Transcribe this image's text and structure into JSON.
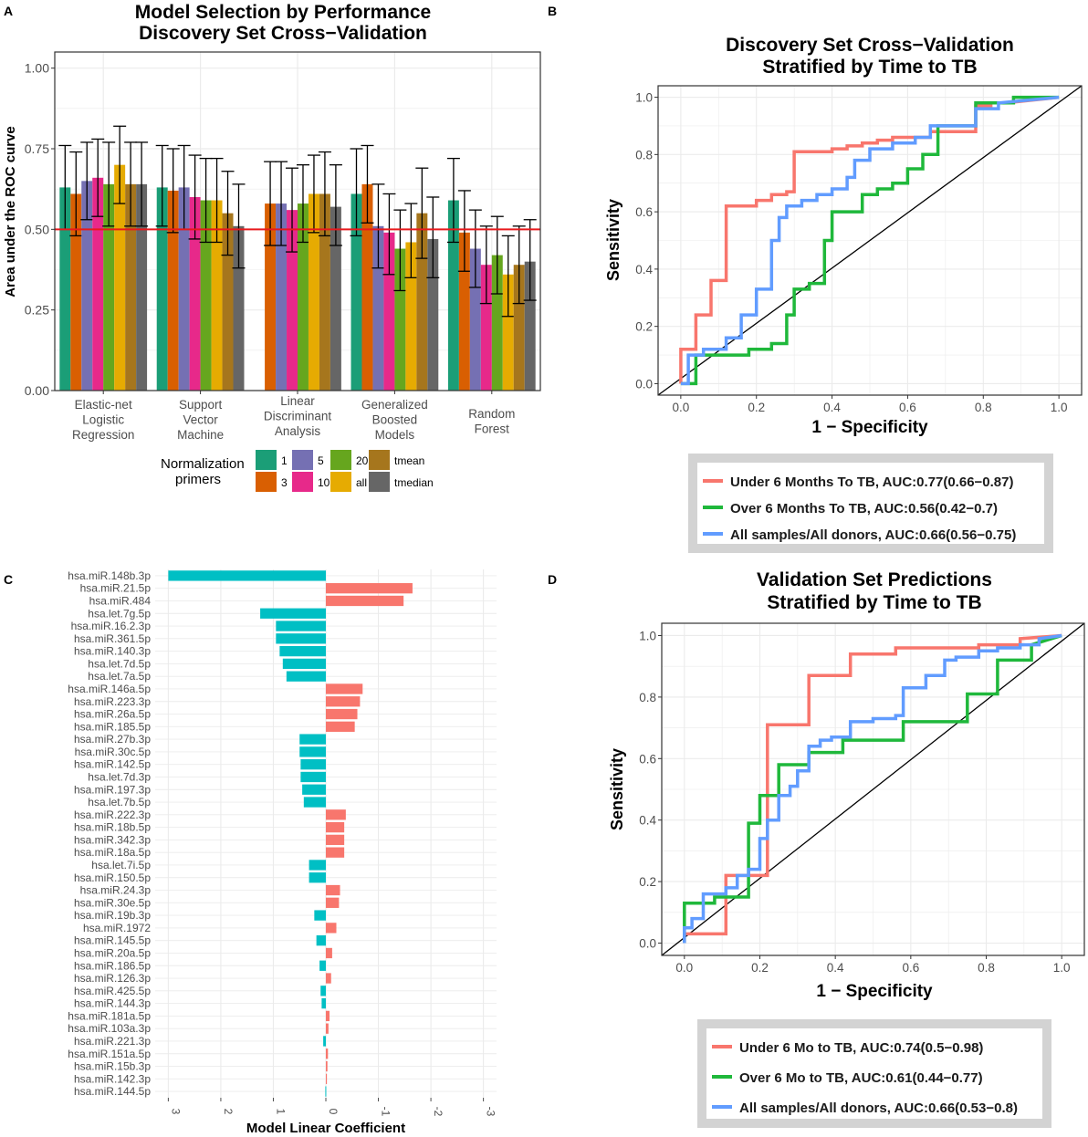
{
  "panel_letters": [
    "A",
    "B",
    "C",
    "D"
  ],
  "colors": {
    "grid": "#ebebeb",
    "border": "#333333",
    "refline": "#e8191c",
    "pos": "#f8766d",
    "neg": "#00bfc4",
    "under": "#f8766d",
    "over": "#1fb83b",
    "all": "#619cff",
    "legend_bg": "#d3d3d3"
  },
  "chart_data": [
    {
      "type": "bar",
      "panel": "A",
      "title": "Model Selection by Performance",
      "subtitle": "Discovery Set Cross−Validation",
      "xlabel": "",
      "ylabel": "Area under the ROC curve",
      "ylim": [
        0,
        1.05
      ],
      "yticks": [
        "0.00",
        "0.25",
        "0.50",
        "0.75",
        "1.00"
      ],
      "reference_line": 0.5,
      "categories": [
        "Elastic-net Logistic Regression",
        "Support Vector Machine",
        "Linear Discriminant Analysis",
        "Generalized Boosted Models",
        "Random Forest"
      ],
      "category_lines": [
        [
          "Elastic-net",
          "Logistic",
          "Regression"
        ],
        [
          "Support",
          "Vector",
          "Machine"
        ],
        [
          "Linear",
          "Discriminant",
          "Analysis"
        ],
        [
          "Generalized",
          "Boosted",
          "Models"
        ],
        [
          "Random",
          "Forest"
        ]
      ],
      "legend_title": [
        "Normalization",
        "primers"
      ],
      "series": [
        {
          "name": "1",
          "color": "#1b9e77",
          "values": [
            0.63,
            0.63,
            null,
            0.61,
            0.59
          ],
          "err_low": [
            0.5,
            0.51,
            null,
            0.48,
            0.46
          ],
          "err_high": [
            0.76,
            0.76,
            null,
            0.75,
            0.72
          ]
        },
        {
          "name": "3",
          "color": "#d95f02",
          "values": [
            0.61,
            0.62,
            0.58,
            0.64,
            0.49
          ],
          "err_low": [
            0.48,
            0.49,
            0.45,
            0.52,
            0.37
          ],
          "err_high": [
            0.74,
            0.75,
            0.71,
            0.76,
            0.62
          ]
        },
        {
          "name": "5",
          "color": "#7570b3",
          "values": [
            0.65,
            0.63,
            0.58,
            0.51,
            0.44
          ],
          "err_low": [
            0.53,
            0.5,
            0.45,
            0.38,
            0.32
          ],
          "err_high": [
            0.77,
            0.76,
            0.71,
            0.64,
            0.56
          ]
        },
        {
          "name": "10",
          "color": "#e7298a",
          "values": [
            0.66,
            0.6,
            0.56,
            0.49,
            0.39
          ],
          "err_low": [
            0.54,
            0.47,
            0.43,
            0.36,
            0.27
          ],
          "err_high": [
            0.78,
            0.73,
            0.69,
            0.61,
            0.51
          ]
        },
        {
          "name": "20",
          "color": "#66a61e",
          "values": [
            0.64,
            0.59,
            0.58,
            0.44,
            0.42
          ],
          "err_low": [
            0.51,
            0.46,
            0.46,
            0.31,
            0.3
          ],
          "err_high": [
            0.77,
            0.72,
            0.7,
            0.56,
            0.54
          ]
        },
        {
          "name": "all",
          "color": "#e6ab02",
          "values": [
            0.7,
            0.59,
            0.61,
            0.46,
            0.36
          ],
          "err_low": [
            0.58,
            0.46,
            0.49,
            0.35,
            0.23
          ],
          "err_high": [
            0.82,
            0.72,
            0.73,
            0.58,
            0.48
          ]
        },
        {
          "name": "tmean",
          "color": "#a6761d",
          "values": [
            0.64,
            0.55,
            0.61,
            0.55,
            0.39
          ],
          "err_low": [
            0.51,
            0.42,
            0.48,
            0.41,
            0.27
          ],
          "err_high": [
            0.77,
            0.68,
            0.74,
            0.69,
            0.51
          ]
        },
        {
          "name": "tmedian",
          "color": "#666666",
          "values": [
            0.64,
            0.51,
            0.57,
            0.47,
            0.4
          ],
          "err_low": [
            0.51,
            0.38,
            0.45,
            0.35,
            0.28
          ],
          "err_high": [
            0.77,
            0.64,
            0.7,
            0.6,
            0.53
          ]
        }
      ]
    },
    {
      "type": "line",
      "panel": "B",
      "title": "Discovery Set Cross−Validation",
      "subtitle": "Stratified by Time to TB",
      "xlabel": "1 − Specificity",
      "ylabel": "Sensitivity",
      "xlim": [
        -0.06,
        1.06
      ],
      "ylim": [
        -0.04,
        1.04
      ],
      "ticks": [
        "0.0",
        "0.2",
        "0.4",
        "0.6",
        "0.8",
        "1.0"
      ],
      "diagonal": true,
      "series": [
        {
          "name": "Under 6 Months To TB, AUC:0.77(0.66−0.87)",
          "color": "#f8766d",
          "x": [
            0,
            0,
            0.04,
            0.04,
            0.08,
            0.08,
            0.12,
            0.12,
            0.2,
            0.2,
            0.24,
            0.24,
            0.28,
            0.28,
            0.3,
            0.3,
            0.4,
            0.4,
            0.44,
            0.44,
            0.48,
            0.48,
            0.52,
            0.52,
            0.56,
            0.56,
            0.66,
            0.66,
            0.78,
            0.78,
            0.82,
            0.82,
            0.86,
            0.86,
            1
          ],
          "y": [
            0,
            0.12,
            0.12,
            0.24,
            0.24,
            0.36,
            0.36,
            0.62,
            0.62,
            0.64,
            0.64,
            0.66,
            0.66,
            0.67,
            0.67,
            0.81,
            0.81,
            0.82,
            0.82,
            0.83,
            0.83,
            0.84,
            0.84,
            0.85,
            0.85,
            0.86,
            0.86,
            0.88,
            0.88,
            0.97,
            0.97,
            0.98,
            0.98,
            0.98,
            1
          ]
        },
        {
          "name": "Over 6 Months To TB, AUC:0.56(0.42−0.7)",
          "color": "#1fb83b",
          "x": [
            0,
            0.04,
            0.04,
            0.18,
            0.18,
            0.24,
            0.24,
            0.28,
            0.28,
            0.3,
            0.3,
            0.34,
            0.34,
            0.38,
            0.38,
            0.4,
            0.4,
            0.48,
            0.48,
            0.52,
            0.52,
            0.56,
            0.56,
            0.6,
            0.6,
            0.64,
            0.64,
            0.68,
            0.68,
            0.78,
            0.78,
            0.88,
            0.88,
            1
          ],
          "y": [
            0,
            0,
            0.1,
            0.1,
            0.12,
            0.12,
            0.14,
            0.14,
            0.24,
            0.24,
            0.33,
            0.33,
            0.35,
            0.35,
            0.5,
            0.5,
            0.6,
            0.6,
            0.66,
            0.66,
            0.68,
            0.68,
            0.7,
            0.7,
            0.75,
            0.75,
            0.8,
            0.8,
            0.9,
            0.9,
            0.98,
            0.98,
            1.0,
            1.0
          ]
        },
        {
          "name": "All samples/All donors, AUC:0.66(0.56−0.75)",
          "color": "#619cff",
          "x": [
            0,
            0.02,
            0.02,
            0.06,
            0.06,
            0.12,
            0.12,
            0.16,
            0.16,
            0.2,
            0.2,
            0.24,
            0.24,
            0.26,
            0.26,
            0.28,
            0.28,
            0.32,
            0.32,
            0.36,
            0.36,
            0.4,
            0.4,
            0.44,
            0.44,
            0.46,
            0.46,
            0.5,
            0.5,
            0.56,
            0.56,
            0.62,
            0.62,
            0.66,
            0.66,
            0.78,
            0.78,
            0.84,
            0.84,
            1
          ],
          "y": [
            0,
            0,
            0.1,
            0.1,
            0.12,
            0.12,
            0.16,
            0.16,
            0.24,
            0.24,
            0.33,
            0.33,
            0.5,
            0.5,
            0.58,
            0.58,
            0.62,
            0.62,
            0.64,
            0.64,
            0.66,
            0.66,
            0.68,
            0.68,
            0.72,
            0.72,
            0.78,
            0.78,
            0.82,
            0.82,
            0.84,
            0.84,
            0.86,
            0.86,
            0.9,
            0.9,
            0.96,
            0.96,
            0.98,
            1.0
          ]
        }
      ]
    },
    {
      "type": "bar",
      "panel": "C",
      "orientation": "horizontal",
      "xlabel": "Model Linear Coefficient",
      "xlim": [
        3.25,
        -3.25
      ],
      "xticks": [
        3,
        2,
        1,
        0,
        -1,
        -2,
        -3
      ],
      "categories": [
        "hsa.miR.148b.3p",
        "hsa.miR.21.5p",
        "hsa.miR.484",
        "hsa.let.7g.5p",
        "hsa.miR.16.2.3p",
        "hsa.miR.361.5p",
        "hsa.miR.140.3p",
        "hsa.let.7d.5p",
        "hsa.let.7a.5p",
        "hsa.miR.146a.5p",
        "hsa.miR.223.3p",
        "hsa.miR.26a.5p",
        "hsa.miR.185.5p",
        "hsa.miR.27b.3p",
        "hsa.miR.30c.5p",
        "hsa.miR.142.5p",
        "hsa.let.7d.3p",
        "hsa.miR.197.3p",
        "hsa.let.7b.5p",
        "hsa.miR.222.3p",
        "hsa.miR.18b.5p",
        "hsa.miR.342.3p",
        "hsa.miR.18a.5p",
        "hsa.let.7i.5p",
        "hsa.miR.150.5p",
        "hsa.miR.24.3p",
        "hsa.miR.30e.5p",
        "hsa.miR.19b.3p",
        "hsa.miR.1972",
        "hsa.miR.145.5p",
        "hsa.miR.20a.5p",
        "hsa.miR.186.5p",
        "hsa.miR.126.3p",
        "hsa.miR.425.5p",
        "hsa.miR.144.3p",
        "hsa.miR.181a.5p",
        "hsa.miR.103a.3p",
        "hsa.miR.221.3p",
        "hsa.miR.151a.5p",
        "hsa.miR.15b.3p",
        "hsa.miR.142.3p",
        "hsa.miR.144.5p"
      ],
      "values": [
        3.0,
        -1.65,
        -1.48,
        1.25,
        0.95,
        0.95,
        0.88,
        0.82,
        0.75,
        -0.7,
        -0.65,
        -0.6,
        -0.55,
        0.5,
        0.5,
        0.48,
        0.48,
        0.45,
        0.42,
        -0.38,
        -0.35,
        -0.35,
        -0.35,
        0.32,
        0.32,
        -0.27,
        -0.25,
        0.22,
        -0.2,
        0.18,
        -0.12,
        0.12,
        -0.1,
        0.1,
        0.08,
        -0.07,
        -0.05,
        0.05,
        -0.04,
        -0.03,
        -0.02,
        0.01
      ]
    },
    {
      "type": "line",
      "panel": "D",
      "title": "Validation Set Predictions",
      "subtitle": "Stratified by Time to TB",
      "xlabel": "1 − Specificity",
      "ylabel": "Sensitivity",
      "xlim": [
        -0.06,
        1.06
      ],
      "ylim": [
        -0.04,
        1.04
      ],
      "ticks": [
        "0.0",
        "0.2",
        "0.4",
        "0.6",
        "0.8",
        "1.0"
      ],
      "diagonal": true,
      "series": [
        {
          "name": "Under 6 Mo to TB, AUC:0.74(0.5−0.98)",
          "color": "#f8766d",
          "x": [
            0,
            0,
            0.11,
            0.11,
            0.22,
            0.22,
            0.33,
            0.33,
            0.44,
            0.44,
            0.56,
            0.56,
            0.78,
            0.78,
            0.89,
            0.89,
            1
          ],
          "y": [
            0,
            0.03,
            0.03,
            0.22,
            0.22,
            0.71,
            0.71,
            0.87,
            0.87,
            0.94,
            0.94,
            0.96,
            0.96,
            0.97,
            0.97,
            0.99,
            1.0
          ]
        },
        {
          "name": "Over 6 Mo to TB, AUC:0.61(0.44−0.77)",
          "color": "#1fb83b",
          "x": [
            0,
            0,
            0.08,
            0.08,
            0.17,
            0.17,
            0.2,
            0.2,
            0.25,
            0.25,
            0.33,
            0.33,
            0.42,
            0.42,
            0.58,
            0.58,
            0.75,
            0.75,
            0.83,
            0.83,
            0.92,
            0.92,
            1
          ],
          "y": [
            0,
            0.13,
            0.13,
            0.15,
            0.15,
            0.39,
            0.39,
            0.48,
            0.48,
            0.58,
            0.58,
            0.62,
            0.62,
            0.66,
            0.66,
            0.72,
            0.72,
            0.81,
            0.81,
            0.92,
            0.92,
            0.97,
            1.0
          ]
        },
        {
          "name": "All samples/All donors, AUC:0.66(0.53−0.8)",
          "color": "#619cff",
          "x": [
            0,
            0,
            0.02,
            0.02,
            0.05,
            0.05,
            0.11,
            0.11,
            0.14,
            0.14,
            0.17,
            0.17,
            0.2,
            0.2,
            0.22,
            0.22,
            0.25,
            0.25,
            0.28,
            0.28,
            0.3,
            0.3,
            0.33,
            0.33,
            0.36,
            0.36,
            0.39,
            0.39,
            0.44,
            0.44,
            0.5,
            0.5,
            0.56,
            0.56,
            0.58,
            0.58,
            0.64,
            0.64,
            0.69,
            0.69,
            0.72,
            0.72,
            0.78,
            0.78,
            0.83,
            0.83,
            0.89,
            0.89,
            0.94,
            0.94,
            1
          ],
          "y": [
            0,
            0.05,
            0.05,
            0.08,
            0.08,
            0.16,
            0.16,
            0.18,
            0.18,
            0.22,
            0.22,
            0.24,
            0.24,
            0.34,
            0.34,
            0.4,
            0.4,
            0.48,
            0.48,
            0.51,
            0.51,
            0.56,
            0.56,
            0.64,
            0.64,
            0.66,
            0.66,
            0.67,
            0.67,
            0.72,
            0.72,
            0.73,
            0.73,
            0.74,
            0.74,
            0.83,
            0.83,
            0.87,
            0.87,
            0.92,
            0.92,
            0.93,
            0.93,
            0.95,
            0.95,
            0.96,
            0.96,
            0.97,
            0.97,
            0.99,
            1.0
          ]
        }
      ]
    }
  ]
}
